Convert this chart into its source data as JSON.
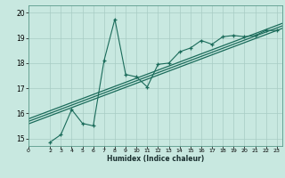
{
  "title": "",
  "xlabel": "Humidex (Indice chaleur)",
  "ylabel": "",
  "bg_color": "#c8e8e0",
  "line_color": "#1a6b5a",
  "grid_color": "#a8ccc4",
  "xlim": [
    0,
    23.5
  ],
  "ylim": [
    14.7,
    20.3
  ],
  "yticks": [
    15,
    16,
    17,
    18,
    19,
    20
  ],
  "xticks": [
    0,
    2,
    3,
    4,
    5,
    6,
    7,
    8,
    9,
    10,
    11,
    12,
    13,
    14,
    15,
    16,
    17,
    18,
    19,
    20,
    21,
    22,
    23
  ],
  "scatter_x": [
    2,
    3,
    4,
    5,
    6,
    7,
    8,
    9,
    10,
    11,
    12,
    13,
    14,
    15,
    16,
    17,
    18,
    19,
    20,
    21,
    22,
    23
  ],
  "scatter_y": [
    14.85,
    15.15,
    16.15,
    15.6,
    15.5,
    18.1,
    19.75,
    17.55,
    17.45,
    17.05,
    17.95,
    18.0,
    18.45,
    18.6,
    18.9,
    18.75,
    19.05,
    19.1,
    19.05,
    19.1,
    19.3,
    19.3
  ],
  "trend_lines": [
    {
      "x": [
        0,
        23.5
      ],
      "y": [
        15.58,
        19.38
      ]
    },
    {
      "x": [
        0,
        23.5
      ],
      "y": [
        15.68,
        19.48
      ]
    },
    {
      "x": [
        0,
        23.5
      ],
      "y": [
        15.78,
        19.58
      ]
    }
  ]
}
